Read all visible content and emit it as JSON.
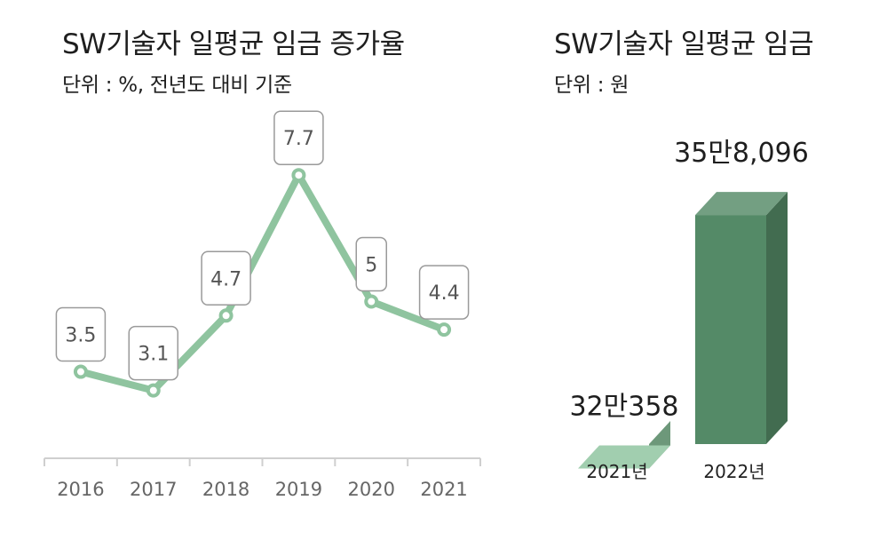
{
  "chart_data": [
    {
      "type": "line",
      "title": "SW기술자 일평균 임금 증가율",
      "subtitle": "단위 : %, 전년도 대비 기준",
      "categories": [
        "2016",
        "2017",
        "2018",
        "2019",
        "2020",
        "2021"
      ],
      "values": [
        3.5,
        3.1,
        4.7,
        7.7,
        5,
        4.4
      ],
      "data_labels": [
        "3.5",
        "3.1",
        "4.7",
        "7.7",
        "5",
        "4.4"
      ],
      "color": "#8fc49f",
      "ylim": [
        0,
        9
      ],
      "grid": false
    },
    {
      "type": "bar",
      "title": "SW기술자 일평균 임금",
      "subtitle": "단위 : 원",
      "categories": [
        "2021년",
        "2022년"
      ],
      "values": [
        320358,
        358096
      ],
      "data_labels": [
        "32만358",
        "35만8,096"
      ],
      "colors": [
        "#8cc39d",
        "#548a67"
      ],
      "style": "3d"
    }
  ]
}
